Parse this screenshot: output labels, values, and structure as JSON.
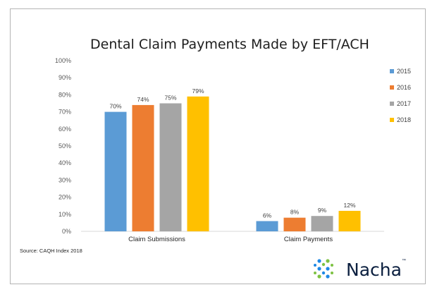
{
  "chart_data": {
    "type": "bar",
    "title": "Dental Claim Payments Made by EFT/ACH",
    "categories": [
      "Claim Submissions",
      "Claim Payments"
    ],
    "series": [
      {
        "name": "2015",
        "color": "#5b9bd5",
        "values": [
          70,
          6
        ]
      },
      {
        "name": "2016",
        "color": "#ed7d31",
        "values": [
          74,
          8
        ]
      },
      {
        "name": "2017",
        "color": "#a5a5a5",
        "values": [
          75,
          9
        ]
      },
      {
        "name": "2018",
        "color": "#ffc000",
        "values": [
          79,
          12
        ]
      }
    ],
    "value_suffix": "%",
    "ylim": [
      0,
      100
    ],
    "yticks": [
      0,
      10,
      20,
      30,
      40,
      50,
      60,
      70,
      80,
      90,
      100
    ],
    "ytick_labels": [
      "0%",
      "10%",
      "20%",
      "30%",
      "40%",
      "50%",
      "60%",
      "70%",
      "80%",
      "90%",
      "100%"
    ],
    "grid": false,
    "legend_position": "right",
    "xlabel": "",
    "ylabel": ""
  },
  "source_note": "Source: CAQH Index 2018",
  "logo": {
    "text": "Nacha",
    "trademark": "™",
    "icon": "nacha-dots-icon",
    "colors": {
      "green": "#7dc242",
      "blue": "#1e88e5",
      "navy": "#0b1f3f"
    }
  }
}
